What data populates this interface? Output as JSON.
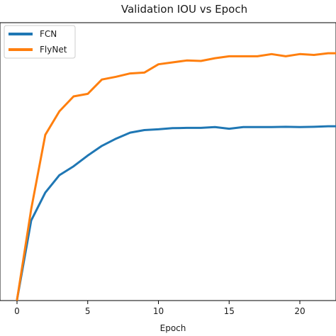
{
  "chart_data": {
    "type": "line",
    "title": "Validation IOU vs Epoch",
    "xlabel": "Epoch",
    "ylabel": "",
    "xlim": [
      -1,
      23
    ],
    "ylim": [
      0,
      1
    ],
    "xticks": [
      0,
      5,
      10,
      15,
      20
    ],
    "legend_position": "top-left",
    "grid": false,
    "series": [
      {
        "name": "FCN",
        "color": "#1f77b4",
        "x": [
          0,
          1,
          2,
          3,
          4,
          5,
          6,
          7,
          8,
          9,
          10,
          11,
          12,
          13,
          14,
          15,
          16,
          17,
          18,
          19,
          20,
          21,
          22,
          23
        ],
        "y": [
          0.0,
          0.287,
          0.388,
          0.451,
          0.483,
          0.522,
          0.557,
          0.583,
          0.605,
          0.614,
          0.617,
          0.621,
          0.622,
          0.622,
          0.625,
          0.619,
          0.625,
          0.625,
          0.625,
          0.626,
          0.625,
          0.626,
          0.628,
          0.628
        ]
      },
      {
        "name": "FlyNet",
        "color": "#ff7f0e",
        "x": [
          0,
          1,
          2,
          3,
          4,
          5,
          6,
          7,
          8,
          9,
          10,
          11,
          12,
          13,
          14,
          15,
          16,
          17,
          18,
          19,
          20,
          21,
          22,
          23
        ],
        "y": [
          0.0,
          0.328,
          0.597,
          0.682,
          0.736,
          0.745,
          0.797,
          0.807,
          0.819,
          0.822,
          0.852,
          0.859,
          0.866,
          0.864,
          0.874,
          0.881,
          0.881,
          0.881,
          0.889,
          0.881,
          0.889,
          0.886,
          0.892,
          0.892
        ]
      }
    ]
  }
}
